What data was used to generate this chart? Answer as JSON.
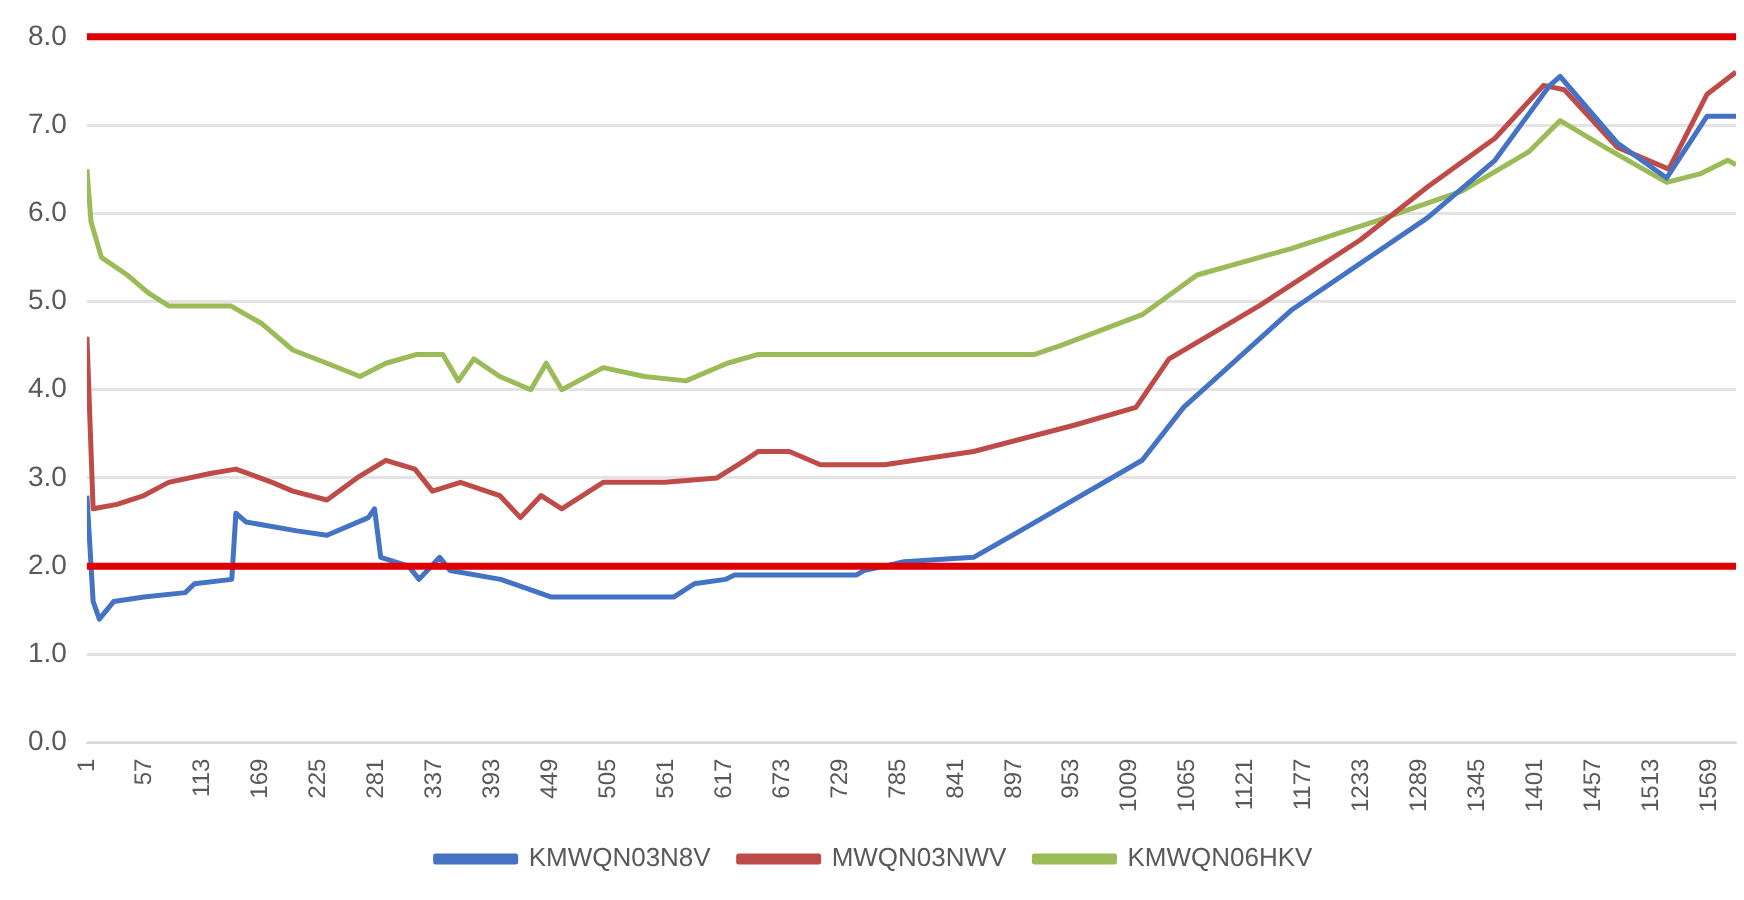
{
  "chart_data": {
    "type": "line",
    "xlim": [
      1,
      1595
    ],
    "xticks": [
      1,
      57,
      113,
      169,
      225,
      281,
      337,
      393,
      449,
      505,
      561,
      617,
      673,
      729,
      785,
      841,
      897,
      953,
      1009,
      1065,
      1121,
      1177,
      1233,
      1289,
      1345,
      1401,
      1457,
      1513,
      1569
    ],
    "ylim": [
      0,
      8
    ],
    "yticks": [
      {
        "value": 0,
        "label": "0.0"
      },
      {
        "value": 1,
        "label": "1.0"
      },
      {
        "value": 2,
        "label": "2.0"
      },
      {
        "value": 3,
        "label": "3.0"
      },
      {
        "value": 4,
        "label": "4.0"
      },
      {
        "value": 5,
        "label": "5.0"
      },
      {
        "value": 6,
        "label": "6.0"
      },
      {
        "value": 7,
        "label": "7.0"
      },
      {
        "value": 8,
        "label": "8.0"
      }
    ],
    "grid": "y",
    "legend": "bottom",
    "ref_lines": [
      {
        "axis": "y",
        "value": 8,
        "color": "#e00000"
      },
      {
        "axis": "y",
        "value": 2,
        "color": "#e00000"
      }
    ],
    "series": [
      {
        "name": "KMWQN03N8V",
        "color": "#4472c4",
        "x": [
          1,
          7,
          13,
          27,
          56,
          96,
          105,
          141,
          145,
          155,
          204,
          233,
          273,
          279,
          285,
          312,
          322,
          342,
          352,
          401,
          450,
          568,
          588,
          618,
          627,
          745,
          752,
          791,
          858,
          903,
          1021,
          1061,
          1165,
          1297,
          1362,
          1415,
          1425,
          1480,
          1528,
          1567,
          1595
        ],
        "values": [
          2.8,
          1.6,
          1.4,
          1.6,
          1.65,
          1.7,
          1.8,
          1.85,
          2.6,
          2.5,
          2.4,
          2.35,
          2.55,
          2.65,
          2.1,
          2.0,
          1.85,
          2.1,
          1.95,
          1.85,
          1.65,
          1.65,
          1.8,
          1.85,
          1.9,
          1.9,
          1.95,
          2.05,
          2.1,
          2.4,
          3.2,
          3.8,
          4.9,
          5.95,
          6.6,
          7.45,
          7.55,
          6.8,
          6.4,
          7.1,
          7.1
        ]
      },
      {
        "name": "MWQN03NWV",
        "color": "#be4b48",
        "x": [
          1,
          7,
          30,
          56,
          80,
          120,
          145,
          180,
          200,
          233,
          262,
          290,
          318,
          335,
          362,
          400,
          420,
          440,
          460,
          500,
          560,
          610,
          637,
          650,
          680,
          710,
          772,
          858,
          956,
          1015,
          1047,
          1134,
          1232,
          1297,
          1362,
          1409,
          1429,
          1480,
          1530,
          1567,
          1595
        ],
        "values": [
          4.6,
          2.65,
          2.7,
          2.8,
          2.95,
          3.05,
          3.1,
          2.95,
          2.85,
          2.75,
          3.0,
          3.2,
          3.1,
          2.85,
          2.95,
          2.8,
          2.55,
          2.8,
          2.65,
          2.95,
          2.95,
          3.0,
          3.2,
          3.3,
          3.3,
          3.15,
          3.15,
          3.3,
          3.6,
          3.8,
          4.35,
          4.95,
          5.7,
          6.3,
          6.85,
          7.45,
          7.4,
          6.75,
          6.5,
          7.35,
          7.6
        ]
      },
      {
        "name": "KMWQN06HKV",
        "color": "#9bbb59",
        "x": [
          1,
          5,
          15,
          40,
          60,
          80,
          140,
          170,
          200,
          233,
          265,
          290,
          320,
          345,
          360,
          375,
          400,
          430,
          445,
          460,
          500,
          540,
          580,
          620,
          650,
          760,
          917,
          942,
          1021,
          1074,
          1165,
          1244,
          1330,
          1395,
          1425,
          1468,
          1528,
          1561,
          1587,
          1595
        ],
        "values": [
          6.5,
          5.9,
          5.5,
          5.3,
          5.1,
          4.95,
          4.95,
          4.75,
          4.45,
          4.3,
          4.15,
          4.3,
          4.4,
          4.4,
          4.1,
          4.35,
          4.15,
          4.0,
          4.3,
          4.0,
          4.25,
          4.15,
          4.1,
          4.3,
          4.4,
          4.4,
          4.4,
          4.5,
          4.85,
          5.3,
          5.6,
          5.9,
          6.25,
          6.7,
          7.05,
          6.75,
          6.35,
          6.45,
          6.6,
          6.55
        ]
      }
    ]
  }
}
